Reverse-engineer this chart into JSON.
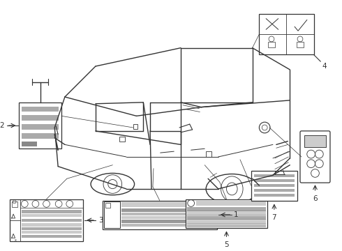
{
  "bg_color": "#ffffff",
  "line_color": "#333333",
  "fig_width": 4.9,
  "fig_height": 3.6,
  "dpi": 100,
  "car": {
    "color": "#333333",
    "lw": 0.9
  }
}
